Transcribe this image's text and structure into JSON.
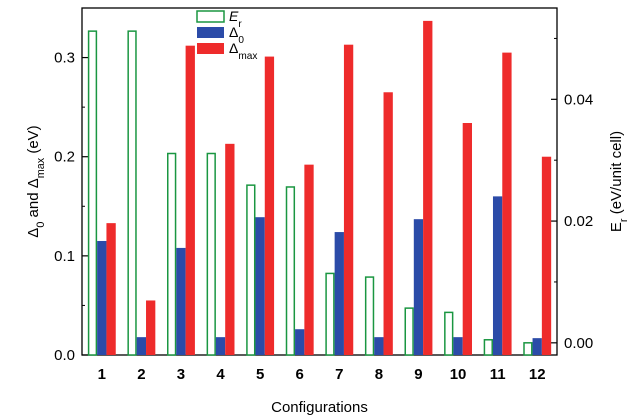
{
  "chart_data": {
    "type": "bar",
    "xlabel": "Configurations",
    "categories": [
      "1",
      "2",
      "3",
      "4",
      "5",
      "6",
      "7",
      "8",
      "9",
      "10",
      "11",
      "12"
    ],
    "y_left": {
      "label_parts": [
        "Δ",
        "0",
        " and ",
        "Δ",
        "max",
        " (eV)"
      ],
      "range": [
        0,
        0.35
      ],
      "ticks": [
        "0.0",
        "0.1",
        "0.2",
        "0.3"
      ],
      "tick_values": [
        0,
        0.1,
        0.2,
        0.3
      ]
    },
    "y_right": {
      "label_parts": [
        "E",
        "r",
        " (eV/unit cell)"
      ],
      "range": [
        -0.002,
        0.055
      ],
      "ticks": [
        "0.00",
        "0.02",
        "0.04"
      ],
      "tick_values": [
        0,
        0.02,
        0.04
      ]
    },
    "series": [
      {
        "name_parts": [
          "E",
          "r"
        ],
        "italic": true,
        "axis": "right",
        "style": "hollow",
        "color": "#1a9641",
        "values": [
          0.0512,
          0.0512,
          0.0311,
          0.0311,
          0.0259,
          0.0256,
          0.0114,
          0.0108,
          0.0057,
          0.005,
          0.0005,
          0.0
        ]
      },
      {
        "name_parts": [
          "Δ",
          "0"
        ],
        "axis": "left",
        "style": "filled",
        "color": "#2b4ba8",
        "values": [
          0.115,
          0.018,
          0.108,
          0.018,
          0.139,
          0.026,
          0.124,
          0.018,
          0.137,
          0.018,
          0.16,
          0.017
        ]
      },
      {
        "name_parts": [
          "Δ",
          "max"
        ],
        "axis": "left",
        "style": "filled",
        "color": "#ee2b2b",
        "values": [
          0.133,
          0.055,
          0.312,
          0.213,
          0.301,
          0.192,
          0.313,
          0.265,
          0.337,
          0.234,
          0.305,
          0.2
        ]
      }
    ],
    "legend_position": "top-center",
    "grid": false
  }
}
